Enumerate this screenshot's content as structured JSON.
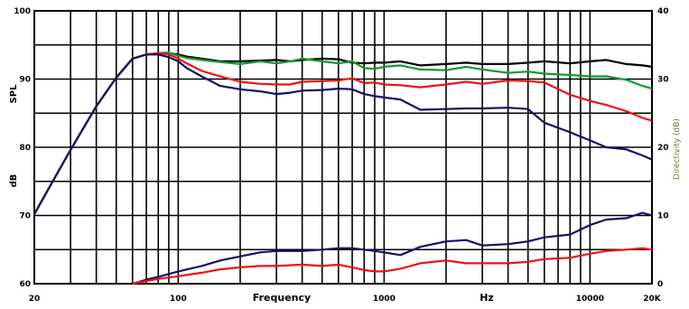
{
  "chart_data": {
    "type": "line",
    "xscale": "log",
    "xlim": [
      20,
      20000
    ],
    "ylim": [
      60,
      100
    ],
    "y2lim": [
      0,
      40
    ],
    "grid": true,
    "legend": "none",
    "xlabel_left": "Frequency",
    "xlabel_right": "Hz",
    "ylabel_top": "SPL",
    "ylabel_bottom": "dB",
    "y2label": "Directivity (dB)",
    "x_tick_labels": [
      {
        "value": 20,
        "label": "20"
      },
      {
        "value": 100,
        "label": "100"
      },
      {
        "value": 1000,
        "label": "1000"
      },
      {
        "value": 10000,
        "label": "10000"
      },
      {
        "value": 20000,
        "label": "20K"
      }
    ],
    "y_tick_labels": [
      {
        "value": 60,
        "label": "60"
      },
      {
        "value": 70,
        "label": "70"
      },
      {
        "value": 80,
        "label": "80"
      },
      {
        "value": 90,
        "label": "90"
      },
      {
        "value": 100,
        "label": "100"
      }
    ],
    "y2_tick_labels": [
      {
        "value": 0,
        "label": "0"
      },
      {
        "value": 10,
        "label": "10"
      },
      {
        "value": 20,
        "label": "20"
      },
      {
        "value": 30,
        "label": "30"
      },
      {
        "value": 40,
        "label": "40"
      }
    ],
    "series": [
      {
        "color": "#000000",
        "axis": "left",
        "x": [
          20,
          25,
          30,
          40,
          50,
          60,
          70,
          80,
          90,
          100,
          110,
          130,
          160,
          200,
          250,
          300,
          350,
          400,
          500,
          600,
          700,
          800,
          900,
          1000,
          1200,
          1500,
          2000,
          2500,
          3000,
          4000,
          5000,
          6000,
          8000,
          10000,
          12000,
          15000,
          18000,
          20000
        ],
        "y": [
          70.2,
          75.4,
          79.6,
          86.0,
          90.2,
          93.0,
          93.6,
          93.8,
          93.8,
          93.6,
          93.3,
          93.0,
          92.6,
          92.6,
          92.7,
          92.8,
          92.6,
          92.8,
          93.0,
          92.9,
          92.4,
          92.3,
          92.4,
          92.4,
          92.6,
          92.0,
          92.2,
          92.4,
          92.2,
          92.2,
          92.4,
          92.6,
          92.3,
          92.6,
          92.8,
          92.2,
          92.0,
          91.8
        ]
      },
      {
        "color": "#119933",
        "axis": "left",
        "x": [
          20,
          25,
          30,
          40,
          50,
          60,
          70,
          80,
          90,
          100,
          110,
          130,
          160,
          200,
          250,
          300,
          350,
          400,
          500,
          600,
          700,
          800,
          900,
          1000,
          1200,
          1500,
          2000,
          2500,
          3000,
          4000,
          5000,
          6000,
          8000,
          10000,
          12000,
          15000,
          18000,
          20000
        ],
        "y": [
          70.2,
          75.4,
          79.6,
          86.0,
          90.2,
          93.0,
          93.6,
          93.8,
          93.9,
          93.4,
          93.1,
          92.8,
          92.5,
          92.2,
          92.6,
          92.3,
          92.6,
          93.0,
          92.6,
          92.3,
          92.6,
          91.6,
          91.5,
          91.8,
          92.0,
          91.4,
          91.3,
          91.8,
          91.4,
          90.9,
          91.1,
          90.8,
          90.6,
          90.4,
          90.4,
          89.9,
          89.0,
          88.6
        ]
      },
      {
        "color": "#ee1111",
        "axis": "left",
        "x": [
          20,
          25,
          30,
          40,
          50,
          60,
          70,
          80,
          90,
          100,
          110,
          130,
          160,
          200,
          250,
          300,
          350,
          400,
          500,
          600,
          700,
          800,
          900,
          1000,
          1200,
          1500,
          2000,
          2500,
          3000,
          4000,
          5000,
          6000,
          8000,
          10000,
          12000,
          15000,
          18000,
          20000
        ],
        "y": [
          70.2,
          75.4,
          79.6,
          86.0,
          90.2,
          93.0,
          93.6,
          93.8,
          93.6,
          93.0,
          92.3,
          91.2,
          90.4,
          89.6,
          89.3,
          89.2,
          89.2,
          89.6,
          89.7,
          89.8,
          90.1,
          89.4,
          89.5,
          89.2,
          89.1,
          88.8,
          89.2,
          89.6,
          89.3,
          89.8,
          89.7,
          89.5,
          87.7,
          86.8,
          86.2,
          85.3,
          84.3,
          83.9
        ]
      },
      {
        "color": "#111166",
        "axis": "left",
        "x": [
          20,
          25,
          30,
          40,
          50,
          60,
          70,
          80,
          90,
          100,
          110,
          130,
          160,
          200,
          250,
          300,
          350,
          400,
          500,
          600,
          700,
          800,
          900,
          1000,
          1200,
          1500,
          2000,
          2500,
          3000,
          4000,
          5000,
          6000,
          8000,
          10000,
          12000,
          15000,
          18000,
          20000
        ],
        "y": [
          70.2,
          75.4,
          79.6,
          86.0,
          90.2,
          93.0,
          93.6,
          93.6,
          93.2,
          92.6,
          91.6,
          90.4,
          89.0,
          88.5,
          88.2,
          87.8,
          88.0,
          88.3,
          88.4,
          88.6,
          88.5,
          87.8,
          87.5,
          87.3,
          87.0,
          85.5,
          85.6,
          85.7,
          85.7,
          85.8,
          85.6,
          83.6,
          82.2,
          81.0,
          80.0,
          79.7,
          78.8,
          78.2
        ]
      },
      {
        "color": "#111166",
        "axis": "right",
        "x": [
          60,
          70,
          80,
          100,
          130,
          160,
          200,
          250,
          300,
          400,
          500,
          600,
          700,
          800,
          900,
          1000,
          1200,
          1500,
          2000,
          2500,
          3000,
          4000,
          5000,
          6000,
          8000,
          10000,
          12000,
          15000,
          18000,
          20000
        ],
        "y": [
          0,
          0.6,
          1.0,
          1.8,
          2.6,
          3.4,
          4.0,
          4.6,
          4.8,
          4.8,
          5.0,
          5.2,
          5.2,
          5.0,
          4.8,
          4.6,
          4.2,
          5.4,
          6.2,
          6.4,
          5.6,
          5.8,
          6.2,
          6.8,
          7.2,
          8.6,
          9.4,
          9.6,
          10.4,
          10.0
        ]
      },
      {
        "color": "#ee1111",
        "axis": "right",
        "x": [
          60,
          70,
          80,
          100,
          130,
          160,
          200,
          250,
          300,
          400,
          500,
          600,
          700,
          800,
          900,
          1000,
          1200,
          1500,
          2000,
          2500,
          3000,
          4000,
          5000,
          6000,
          8000,
          10000,
          12000,
          15000,
          18000,
          20000
        ],
        "y": [
          0,
          0.4,
          0.7,
          1.1,
          1.6,
          2.1,
          2.4,
          2.6,
          2.6,
          2.8,
          2.6,
          2.8,
          2.4,
          2.0,
          1.8,
          1.8,
          2.2,
          3.0,
          3.4,
          3.0,
          3.0,
          3.0,
          3.2,
          3.6,
          3.8,
          4.4,
          4.8,
          5.0,
          5.2,
          5.0
        ]
      }
    ]
  }
}
